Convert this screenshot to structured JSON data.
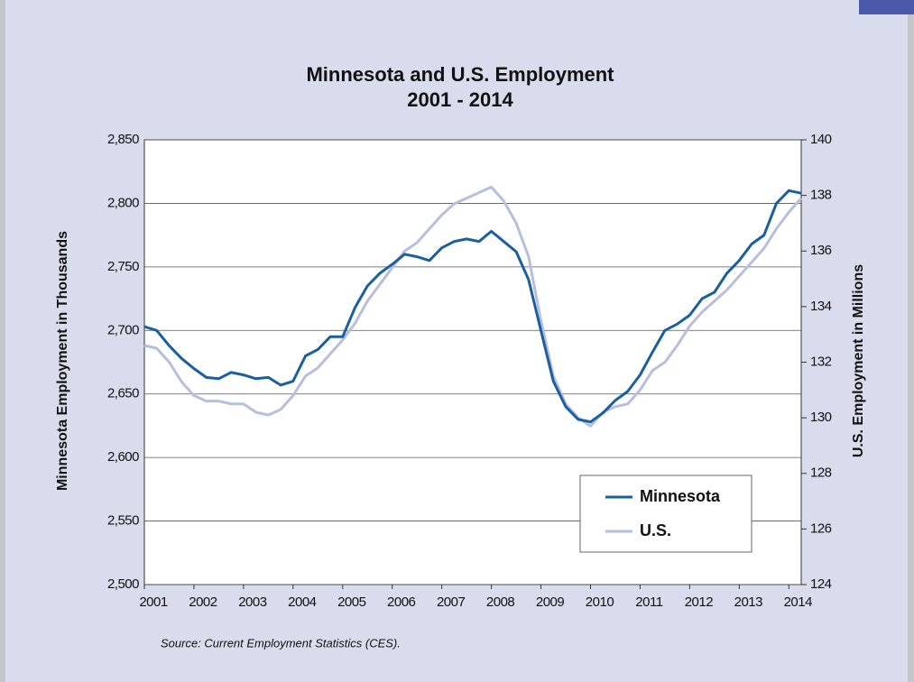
{
  "chart_data": {
    "type": "line",
    "title": "Minnesota and U.S. Employment",
    "subtitle": "2001 - 2014",
    "ylabel": "Minnesota Employment in Thousands",
    "y2label": "U.S. Employment in Millions",
    "source": "Source: Current Employment Statistics (CES).",
    "x": [
      2001,
      2001.25,
      2001.5,
      2001.75,
      2002,
      2002.25,
      2002.5,
      2002.75,
      2003,
      2003.25,
      2003.5,
      2003.75,
      2004,
      2004.25,
      2004.5,
      2004.75,
      2005,
      2005.25,
      2005.5,
      2005.75,
      2006,
      2006.25,
      2006.5,
      2006.75,
      2007,
      2007.25,
      2007.5,
      2007.75,
      2008,
      2008.25,
      2008.5,
      2008.75,
      2009,
      2009.25,
      2009.5,
      2009.75,
      2010,
      2010.25,
      2010.5,
      2010.75,
      2011,
      2011.25,
      2011.5,
      2011.75,
      2012,
      2012.25,
      2012.5,
      2012.75,
      2013,
      2013.25,
      2013.5,
      2013.75,
      2014,
      2014.25
    ],
    "series": [
      {
        "name": "Minnesota",
        "color": "#1a5fa0",
        "axis": "y",
        "values": [
          2703,
          2700,
          2688,
          2678,
          2670,
          2663,
          2662,
          2667,
          2665,
          2662,
          2663,
          2657,
          2660,
          2680,
          2685,
          2695,
          2695,
          2718,
          2735,
          2745,
          2752,
          2760,
          2758,
          2755,
          2765,
          2770,
          2772,
          2770,
          2778,
          2770,
          2762,
          2740,
          2700,
          2660,
          2640,
          2630,
          2628,
          2635,
          2645,
          2652,
          2665,
          2683,
          2700,
          2705,
          2712,
          2725,
          2730,
          2745,
          2755,
          2768,
          2775,
          2800,
          2810,
          2808
        ]
      },
      {
        "name": "U.S.",
        "color": "#b7bede",
        "axis": "y2",
        "values": [
          132.6,
          132.5,
          132.0,
          131.3,
          130.8,
          130.6,
          130.6,
          130.5,
          130.5,
          130.2,
          130.1,
          130.3,
          130.8,
          131.5,
          131.8,
          132.3,
          132.8,
          133.4,
          134.2,
          134.8,
          135.4,
          136.0,
          136.3,
          136.8,
          137.3,
          137.7,
          137.9,
          138.1,
          138.3,
          137.8,
          137.0,
          135.8,
          133.5,
          131.5,
          130.5,
          130.0,
          129.7,
          130.2,
          130.4,
          130.5,
          131.0,
          131.7,
          132.0,
          132.6,
          133.3,
          133.8,
          134.2,
          134.6,
          135.1,
          135.6,
          136.1,
          136.8,
          137.4,
          137.9
        ]
      }
    ],
    "xlim": [
      2001,
      2014.25
    ],
    "xticks": [
      2001,
      2002,
      2003,
      2004,
      2005,
      2006,
      2007,
      2008,
      2009,
      2010,
      2011,
      2012,
      2013,
      2014
    ],
    "ylim": [
      2500,
      2850
    ],
    "yticks": [
      {
        "value": 2500,
        "label": "2,500"
      },
      {
        "value": 2550,
        "label": "2,550"
      },
      {
        "value": 2600,
        "label": "2,600"
      },
      {
        "value": 2650,
        "label": "2,650"
      },
      {
        "value": 2700,
        "label": "2,700"
      },
      {
        "value": 2750,
        "label": "2,750"
      },
      {
        "value": 2800,
        "label": "2,800"
      },
      {
        "value": 2850,
        "label": "2,850"
      }
    ],
    "y2lim": [
      124,
      140
    ],
    "y2ticks": [
      124,
      126,
      128,
      130,
      132,
      134,
      136,
      138,
      140
    ],
    "grid": true,
    "legend": "lower right"
  }
}
